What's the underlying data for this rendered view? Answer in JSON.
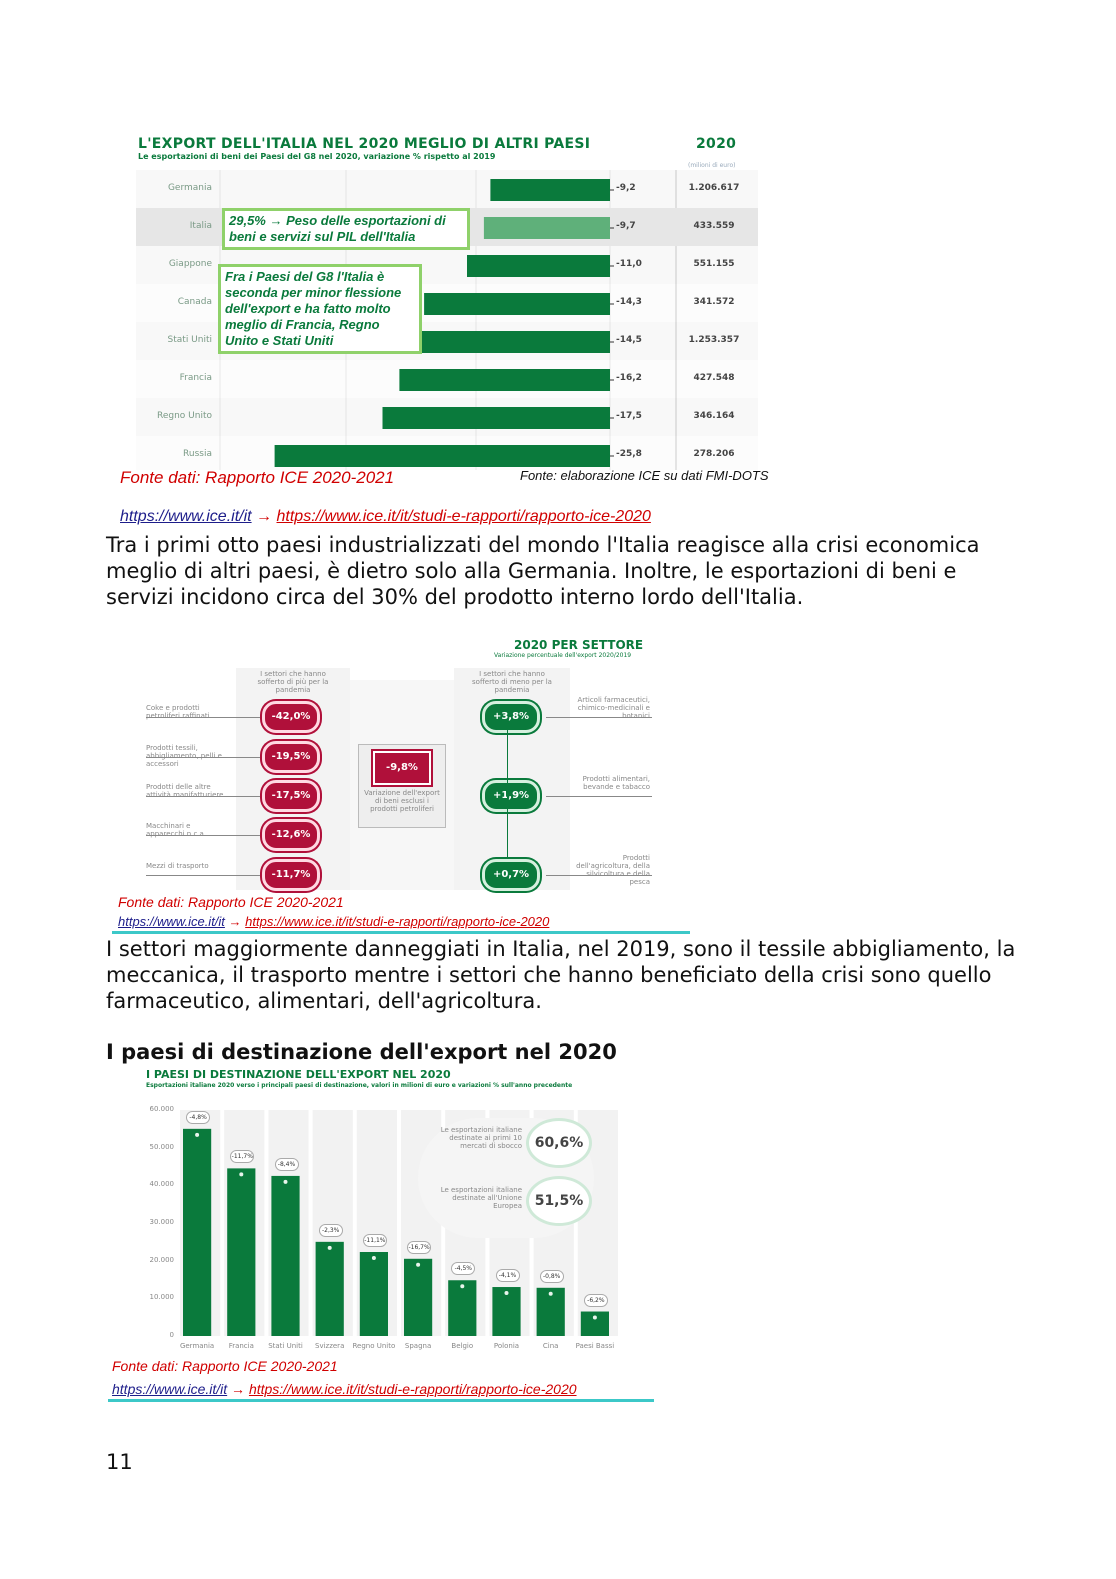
{
  "chart1": {
    "title": "L'EXPORT DELL'ITALIA NEL 2020 MEGLIO DI ALTRI PAESI",
    "subtitle": "Le esportazioni di beni dei Paesi del G8 nel 2020, variazione % rispetto al 2019",
    "year_header": "2020",
    "unit_header": "(milioni di euro)",
    "callout1": "29,5% → Peso delle esportazioni di beni e servizi sul PIL dell'Italia",
    "callout2": "Fra i Paesi del G8 l'Italia è seconda per minor flessione dell'export e ha fatto molto meglio di Francia, Regno Unito e Stati Uniti",
    "source_left": "Fonte dati: Rapporto ICE 2020-2021",
    "source_right": "Fonte: elaborazione ICE su dati FMI-DOTS"
  },
  "chart_data": [
    {
      "type": "bar",
      "categories": [
        "Germania",
        "Italia",
        "Giappone",
        "Canada",
        "Stati Uniti",
        "Francia",
        "Regno Unito",
        "Russia"
      ],
      "values": [
        -9.2,
        -9.7,
        -11.0,
        -14.3,
        -14.5,
        -16.2,
        -17.5,
        -25.8
      ],
      "value_labels": [
        "-9,2",
        "-9,7",
        "-11,0",
        "-14,3",
        "-14,5",
        "-16,2",
        "-17,5",
        "-25,8"
      ],
      "totals": [
        "1.206.617",
        "433.559",
        "551.155",
        "341.572",
        "1.253.357",
        "427.548",
        "346.164",
        "278.206"
      ],
      "xlim": [
        -30,
        0
      ]
    },
    {
      "type": "bar",
      "title": "2020 PER SETTORE",
      "subtitle": "Variazione percentuale dell'export 2020/2019",
      "left_header": "I settori che hanno sofferto di più per la pandemia",
      "right_header": "I settori che hanno sofferto di meno per la pandemia",
      "center_value": "-9,8%",
      "center_label": "Variazione dell'export di beni esclusi i prodotti petroliferi",
      "negative": [
        {
          "label": "Coke e prodotti petroliferi raffinati",
          "value": "-42,0%"
        },
        {
          "label": "Prodotti tessili, abbigliamento, pelli e accessori",
          "value": "-19,5%"
        },
        {
          "label": "Prodotti delle altre attività manifatturiere",
          "value": "-17,5%"
        },
        {
          "label": "Macchinari e apparecchi n.c.a.",
          "value": "-12,6%"
        },
        {
          "label": "Mezzi di trasporto",
          "value": "-11,7%"
        }
      ],
      "positive": [
        {
          "label": "Articoli farmaceutici, chimico-medicinali e botanici",
          "value": "+3,8%"
        },
        {
          "label": "Prodotti alimentari, bevande e tabacco",
          "value": "+1,9%"
        },
        {
          "label": "Prodotti dell'agricoltura, della silvicoltura e della pesca",
          "value": "+0,7%"
        }
      ]
    },
    {
      "type": "bar",
      "title": "I PAESI DI DESTINAZIONE DELL'EXPORT NEL 2020",
      "subtitle": "Esportazioni italiane 2020 verso i principali paesi di destinazione, valori in milioni di euro e variazioni % sull'anno precedente",
      "categories": [
        "Germania",
        "Francia",
        "Stati Uniti",
        "Svizzera",
        "Regno Unito",
        "Spagna",
        "Belgio",
        "Polonia",
        "Cina",
        "Paesi Bassi"
      ],
      "values": [
        55000,
        44500,
        42500,
        25000,
        22300,
        20500,
        14800,
        13000,
        12800,
        6500
      ],
      "changes": [
        "-4,8%",
        "-11,7%",
        "-8,4%",
        "-2,3%",
        "-11,1%",
        "-16,7%",
        "-4,5%",
        "-4,1%",
        "-0,8%",
        "-6,2%"
      ],
      "yticks": [
        "60.000",
        "50.000",
        "40.000",
        "30.000",
        "20.000",
        "10.000",
        "0"
      ],
      "ylim": [
        0,
        60000
      ],
      "note1_text": "Le esportazioni italiane destinate ai primi 10 mercati di sbocco",
      "note1_value": "60,6%",
      "note2_text": "Le esportazioni italiane destinate all'Unione Europea",
      "note2_value": "51,5%"
    }
  ],
  "source_label": "Fonte dati: Rapporto ICE 2020-2021",
  "link1": "https://www.ice.it/it",
  "arrow": "→",
  "link2": "https://www.ice.it/it/studi-e-rapporti/rapporto-ice-2020",
  "paragraph1": "Tra i primi otto paesi industrializzati del mondo l'Italia reagisce alla crisi economica meglio di altri paesi, è dietro solo alla Germania. Inoltre, le esportazioni di beni e servizi incidono circa del 30% del prodotto interno lordo dell'Italia.",
  "paragraph2": "I settori maggiormente danneggiati in Italia, nel 2019, sono il tessile abbigliamento, la meccanica, il trasporto mentre i settori che hanno beneficiato della crisi sono quello farmaceutico, alimentari, dell'agricoltura.",
  "heading": "I paesi di destinazione dell'export nel 2020",
  "page_number": "11"
}
